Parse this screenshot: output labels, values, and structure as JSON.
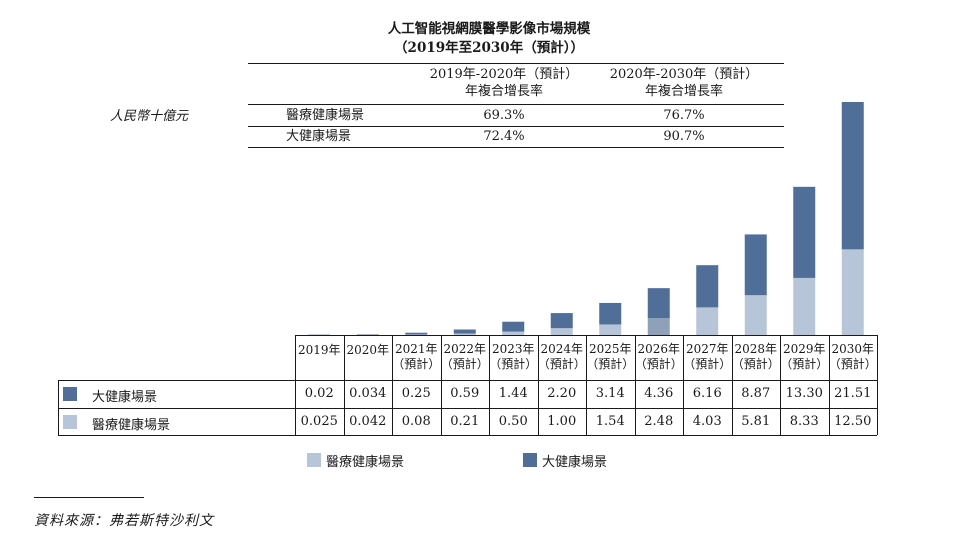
{
  "title": {
    "line1": "人工智能視網膜醫學影像市場規模",
    "line2": "（2019年至2030年（預計））"
  },
  "unit_label": "人民幣十億元",
  "cagr_table": {
    "col1_line1": "2019年-2020年（預計）",
    "col1_line2": "年複合增長率",
    "col2_line1": "2020年-2030年（預計）",
    "col2_line2": "年複合增長率",
    "rows": [
      {
        "label": "醫療健康場景",
        "v1": "69.3%",
        "v2": "76.7%"
      },
      {
        "label": "大健康場景",
        "v1": "72.4%",
        "v2": "90.7%"
      }
    ]
  },
  "colors": {
    "medical": "#b7c5d8",
    "big_health": "#4f6f99",
    "medical_2026": "#8fa1b8"
  },
  "chart_data": {
    "type": "bar",
    "stacked": true,
    "categories": [
      "2019年",
      "2020年",
      "2021年",
      "2022年",
      "2023年",
      "2024年",
      "2025年",
      "2026年",
      "2027年",
      "2028年",
      "2029年",
      "2030年"
    ],
    "category_notes": [
      "",
      "",
      "（預計）",
      "（預計）",
      "（預計）",
      "（預計）",
      "（預計）",
      "（預計）",
      "（預計）",
      "（預計）",
      "（預計）",
      "（預計）"
    ],
    "series": [
      {
        "name": "大健康場景",
        "values": [
          0.02,
          0.034,
          0.25,
          0.59,
          1.44,
          2.2,
          3.14,
          4.36,
          6.16,
          8.87,
          13.3,
          21.51
        ],
        "labels": [
          "0.02",
          "0.034",
          "0.25",
          "0.59",
          "1.44",
          "2.20",
          "3.14",
          "4.36",
          "6.16",
          "8.87",
          "13.30",
          "21.51"
        ]
      },
      {
        "name": "醫療健康場景",
        "values": [
          0.025,
          0.042,
          0.08,
          0.21,
          0.5,
          1.0,
          1.54,
          2.48,
          4.03,
          5.81,
          8.33,
          12.5
        ],
        "labels": [
          "0.025",
          "0.042",
          "0.08",
          "0.21",
          "0.50",
          "1.00",
          "1.54",
          "2.48",
          "4.03",
          "5.81",
          "8.33",
          "12.50"
        ]
      }
    ],
    "ylabel": "人民幣十億元",
    "ylim": [
      0,
      34.01
    ],
    "grid": false,
    "legend": "bottom"
  },
  "legend": {
    "medical": "醫療健康場景",
    "big_health": "大健康場景"
  },
  "source": "資料來源：弗若斯特沙利文"
}
